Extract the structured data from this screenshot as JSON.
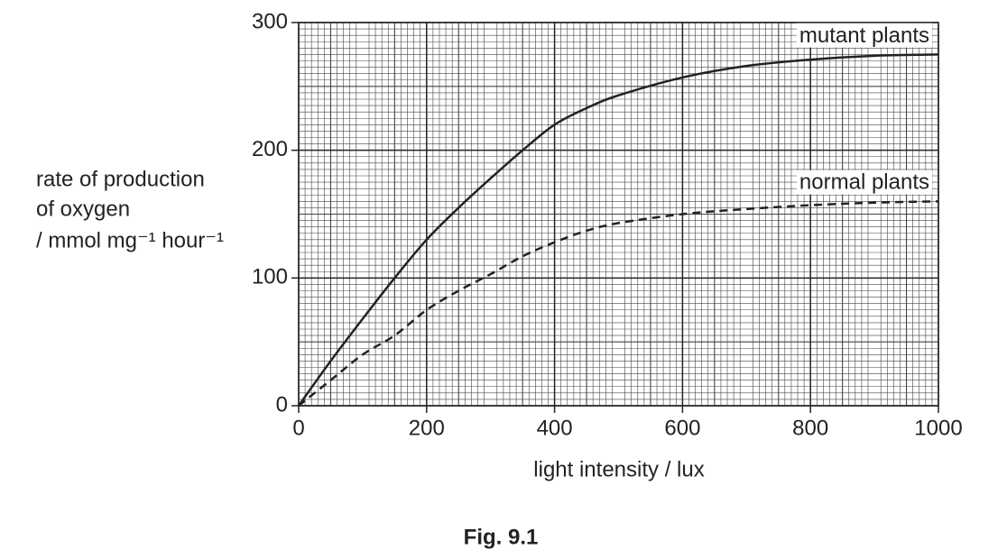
{
  "chart_data": {
    "type": "line",
    "caption": "Fig. 9.1",
    "x_label": "light intensity / lux",
    "y_label": [
      "rate of production",
      "of oxygen",
      "/ mmol mg⁻¹ hour⁻¹"
    ],
    "x": [
      0,
      50,
      100,
      150,
      200,
      250,
      300,
      350,
      400,
      450,
      500,
      600,
      700,
      800,
      900,
      1000
    ],
    "series": [
      {
        "name": "mutant plants",
        "color": "#222222",
        "dashed": false,
        "values": [
          0,
          35,
          68,
          100,
          130,
          155,
          178,
          200,
          220,
          233,
          243,
          257,
          266,
          271,
          274,
          275
        ]
      },
      {
        "name": "normal plants",
        "color": "#222222",
        "dashed": true,
        "values": [
          0,
          20,
          40,
          55,
          75,
          90,
          103,
          117,
          128,
          137,
          143,
          150,
          154,
          157,
          159,
          160
        ]
      }
    ],
    "xlim": [
      0,
      1000
    ],
    "ylim": [
      0,
      300
    ],
    "xticks": [
      0,
      200,
      400,
      600,
      800,
      1000
    ],
    "yticks": [
      0,
      100,
      200,
      300
    ],
    "grid": true
  }
}
